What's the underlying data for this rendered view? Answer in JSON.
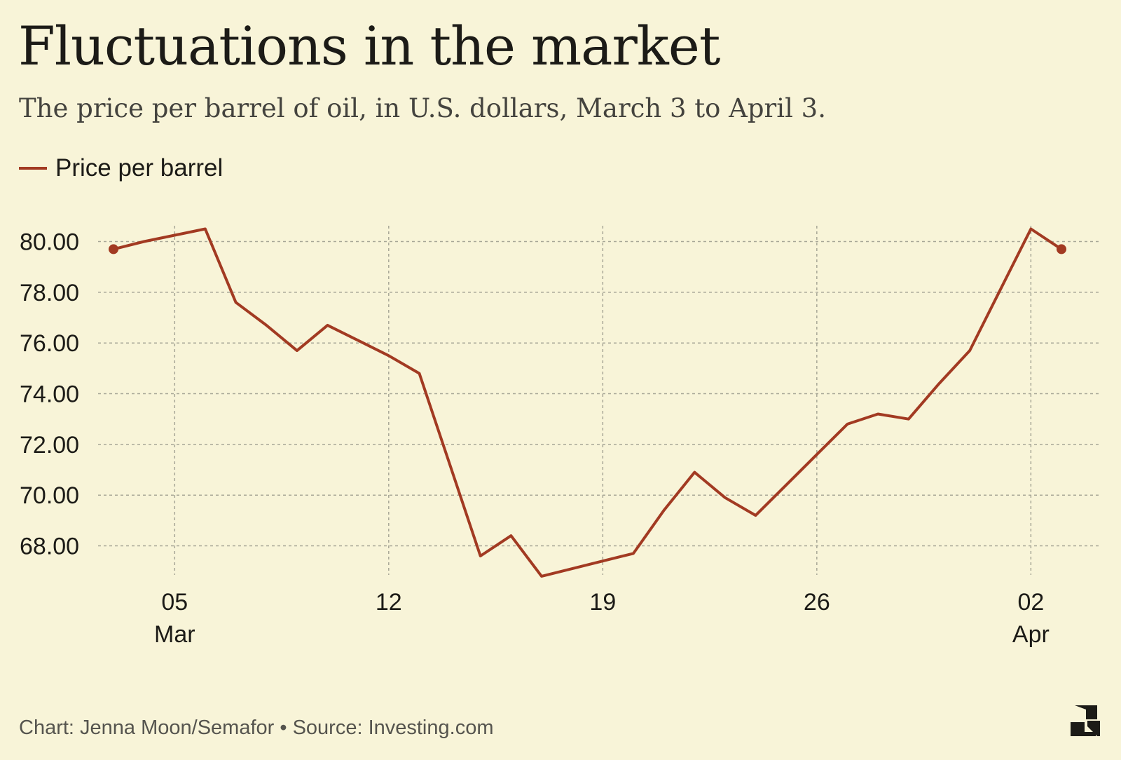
{
  "header": {
    "title": "Fluctuations in the market",
    "subtitle": "The price per barrel of oil, in U.S. dollars, March 3 to April 3."
  },
  "footer": {
    "credit": "Chart: Jenna Moon/Semafor • Source: Investing.com",
    "logo_text": "S"
  },
  "colors": {
    "background": "#f8f4d8",
    "line": "#a23a22",
    "grid": "#a8a797",
    "text": "#1c1b17"
  },
  "chart_data": {
    "type": "line",
    "series": [
      {
        "name": "Price per barrel",
        "x": [
          "2024-03-03",
          "2024-03-04",
          "2024-03-05",
          "2024-03-06",
          "2024-03-07",
          "2024-03-08",
          "2024-03-09",
          "2024-03-10",
          "2024-03-11",
          "2024-03-12",
          "2024-03-13",
          "2024-03-14",
          "2024-03-15",
          "2024-03-16",
          "2024-03-17",
          "2024-03-18",
          "2024-03-19",
          "2024-03-20",
          "2024-03-21",
          "2024-03-22",
          "2024-03-23",
          "2024-03-24",
          "2024-03-25",
          "2024-03-26",
          "2024-03-27",
          "2024-03-28",
          "2024-03-29",
          "2024-03-30",
          "2024-03-31",
          "2024-04-01",
          "2024-04-02",
          "2024-04-03"
        ],
        "y": [
          79.7,
          80.0,
          80.25,
          80.5,
          77.6,
          76.7,
          75.7,
          76.7,
          76.1,
          75.5,
          74.8,
          71.2,
          67.6,
          68.4,
          66.8,
          67.1,
          67.4,
          67.7,
          69.4,
          70.9,
          69.9,
          69.2,
          70.4,
          71.6,
          72.8,
          73.2,
          73.0,
          74.4,
          75.7,
          78.1,
          80.5,
          79.7
        ]
      }
    ],
    "x_ticks": [
      {
        "day": "05",
        "month": "Mar",
        "date": "2024-03-05"
      },
      {
        "day": "12",
        "month": "",
        "date": "2024-03-12"
      },
      {
        "day": "19",
        "month": "",
        "date": "2024-03-19"
      },
      {
        "day": "26",
        "month": "",
        "date": "2024-03-26"
      },
      {
        "day": "02",
        "month": "Apr",
        "date": "2024-04-02"
      }
    ],
    "y_ticks": [
      "68.00",
      "70.00",
      "72.00",
      "74.00",
      "76.00",
      "78.00",
      "80.00"
    ],
    "ylim": [
      66.3,
      80.9
    ],
    "grid": true,
    "legend_position": "top-left",
    "endpoint_markers": true
  }
}
